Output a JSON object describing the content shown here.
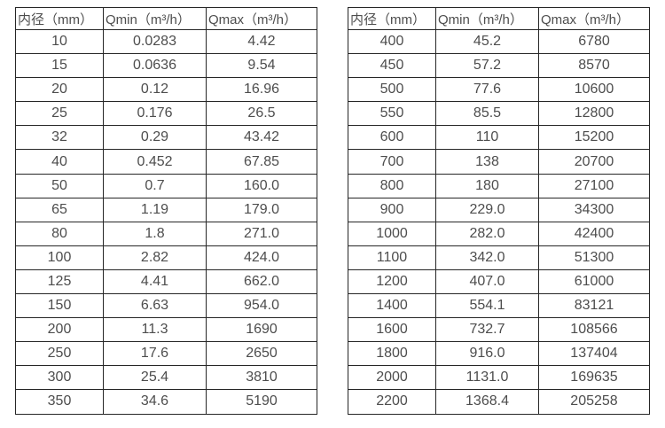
{
  "page": {
    "background": "#ffffff",
    "border_color": "#262626",
    "text_color": "#4d4d4d"
  },
  "tables": [
    {
      "name": "diameter-flow-table-left",
      "headers": [
        "内径（mm）",
        "Qmin（m³/h）",
        "Qmax（m³/h）"
      ],
      "rows": [
        [
          "10",
          "0.0283",
          "4.42"
        ],
        [
          "15",
          "0.0636",
          "9.54"
        ],
        [
          "20",
          "0.12",
          "16.96"
        ],
        [
          "25",
          "0.176",
          "26.5"
        ],
        [
          "32",
          "0.29",
          "43.42"
        ],
        [
          "40",
          "0.452",
          "67.85"
        ],
        [
          "50",
          "0.7",
          "160.0"
        ],
        [
          "65",
          "1.19",
          "179.0"
        ],
        [
          "80",
          "1.8",
          "271.0"
        ],
        [
          "100",
          "2.82",
          "424.0"
        ],
        [
          "125",
          "4.41",
          "662.0"
        ],
        [
          "150",
          "6.63",
          "954.0"
        ],
        [
          "200",
          "11.3",
          "1690"
        ],
        [
          "250",
          "17.6",
          "2650"
        ],
        [
          "300",
          "25.4",
          "3810"
        ],
        [
          "350",
          "34.6",
          "5190"
        ]
      ]
    },
    {
      "name": "diameter-flow-table-right",
      "headers": [
        "内径（mm）",
        "Qmin（m³/h）",
        "Qmax（m³/h）"
      ],
      "rows": [
        [
          "400",
          "45.2",
          "6780"
        ],
        [
          "450",
          "57.2",
          "8570"
        ],
        [
          "500",
          "77.6",
          "10600"
        ],
        [
          "550",
          "85.5",
          "12800"
        ],
        [
          "600",
          "110",
          "15200"
        ],
        [
          "700",
          "138",
          "20700"
        ],
        [
          "800",
          "180",
          "27100"
        ],
        [
          "900",
          "229.0",
          "34300"
        ],
        [
          "1000",
          "282.0",
          "42400"
        ],
        [
          "1100",
          "342.0",
          "51300"
        ],
        [
          "1200",
          "407.0",
          "61000"
        ],
        [
          "1400",
          "554.1",
          "83121"
        ],
        [
          "1600",
          "732.7",
          "108566"
        ],
        [
          "1800",
          "916.0",
          "137404"
        ],
        [
          "2000",
          "1131.0",
          "169635"
        ],
        [
          "2200",
          "1368.4",
          "205258"
        ]
      ]
    }
  ]
}
